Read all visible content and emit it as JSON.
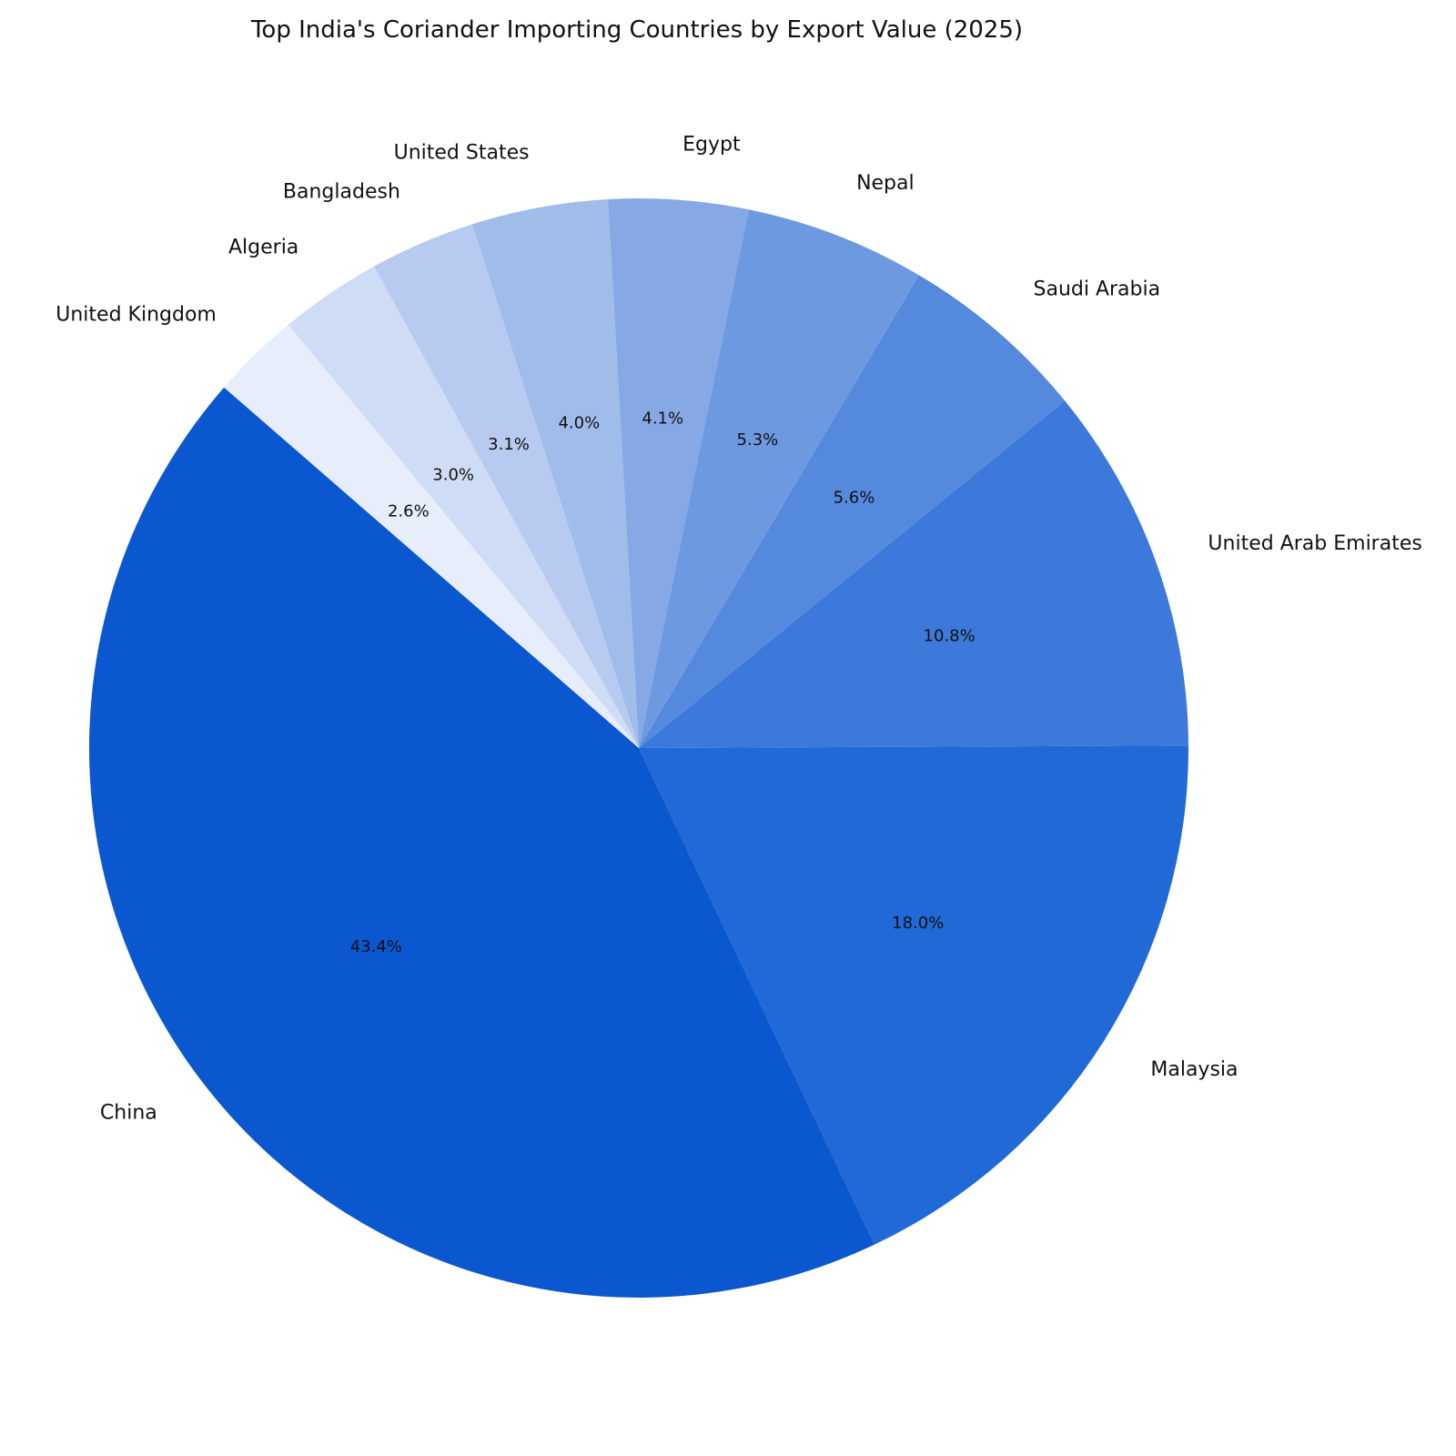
{
  "chart_data": {
    "type": "pie",
    "title": "Top India's Coriander Importing Countries by Export Value (2025)",
    "categories": [
      "China",
      "Malaysia",
      "United Arab Emirates",
      "Saudi Arabia",
      "Nepal",
      "Egypt",
      "United States",
      "Bangladesh",
      "Algeria",
      "United Kingdom"
    ],
    "values": [
      43.4,
      18.0,
      10.8,
      5.6,
      5.3,
      4.1,
      4.0,
      3.1,
      3.0,
      2.6
    ],
    "percent_labels": [
      "43.4%",
      "18.0%",
      "10.8%",
      "5.6%",
      "5.3%",
      "4.1%",
      "4.0%",
      "3.1%",
      "3.0%",
      "2.6%"
    ],
    "colors": [
      "#0b57d0",
      "#2169d6",
      "#3c79da",
      "#5589dd",
      "#6d99e1",
      "#86a9e6",
      "#a0bdea",
      "#b7cbf0",
      "#cfdcf5",
      "#e7edfb"
    ],
    "start_angle_deg": 139,
    "direction": "counterclockwise",
    "legend": "none"
  }
}
